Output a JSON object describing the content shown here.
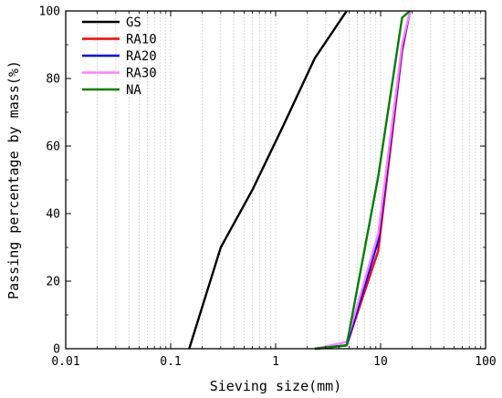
{
  "chart_data": {
    "type": "line",
    "xlabel": "Sieving size(mm)",
    "ylabel": "Passing percentage by mass(%)",
    "x_scale": "log",
    "xlim": [
      0.01,
      100
    ],
    "ylim": [
      0,
      100
    ],
    "x_ticks": [
      0.01,
      0.1,
      1,
      10,
      100
    ],
    "x_tick_labels": [
      "0.01",
      "0.1",
      "1",
      "10",
      "100"
    ],
    "y_ticks": [
      0,
      20,
      40,
      60,
      80,
      100
    ],
    "y_tick_labels": [
      "0",
      "20",
      "40",
      "60",
      "80",
      "100"
    ],
    "grid": "vertical minor and major dotted",
    "legend_position": "top-left",
    "series": [
      {
        "name": "GS",
        "color": "#000000",
        "x": [
          0.15,
          0.3,
          0.6,
          1.18,
          2.36,
          4.75
        ],
        "y": [
          0,
          30,
          47,
          66,
          86,
          100
        ]
      },
      {
        "name": "RA10",
        "color": "#ff0000",
        "x": [
          2.36,
          4.75,
          9.5,
          16,
          19
        ],
        "y": [
          0,
          1,
          29,
          88,
          100
        ]
      },
      {
        "name": "RA20",
        "color": "#0000ff",
        "x": [
          2.36,
          4.75,
          9.5,
          16,
          19
        ],
        "y": [
          0,
          1,
          32,
          89,
          100
        ]
      },
      {
        "name": "RA30",
        "color": "#ff80ff",
        "x": [
          2.36,
          4.75,
          9.5,
          16,
          19
        ],
        "y": [
          0,
          2,
          34,
          90,
          100
        ]
      },
      {
        "name": "NA",
        "color": "#008000",
        "x": [
          2.36,
          4.75,
          9.5,
          16,
          19
        ],
        "y": [
          0,
          1,
          51,
          98,
          100
        ]
      }
    ]
  }
}
